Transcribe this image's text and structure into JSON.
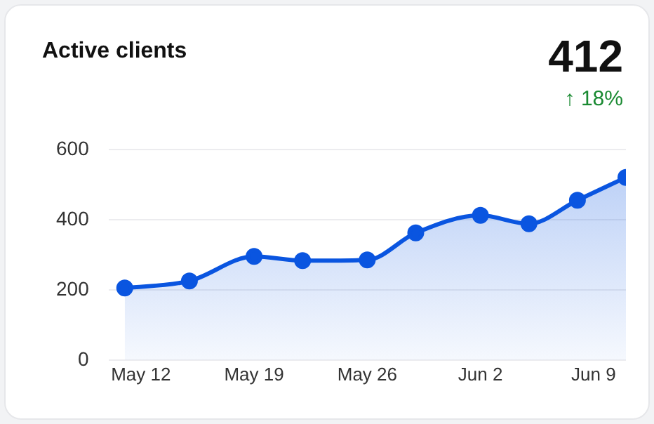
{
  "chart_data": {
    "type": "area",
    "title": "Active clients",
    "annotations": [
      "412",
      "↑ 18%"
    ],
    "x": [
      "--05-11",
      "--05-15",
      "--05-19",
      "--05-22",
      "--05-26",
      "--05-29",
      "--06-02",
      "--06-05",
      "--06-08",
      "--06-11"
    ],
    "series": [
      {
        "color": "#0a55e0",
        "values": [
          205,
          225,
          295,
          283,
          285,
          362,
          412,
          388,
          455,
          520
        ]
      }
    ],
    "xlim": [
      "--05-10",
      "--06-11"
    ],
    "xticks": [
      {
        "value": "--05-12",
        "label": "May 12"
      },
      {
        "value": "--05-19",
        "label": "May 19"
      },
      {
        "value": "--05-26",
        "label": "May 26"
      },
      {
        "value": "--06-02",
        "label": "Jun 2"
      },
      {
        "value": "--06-09",
        "label": "Jun 9"
      }
    ],
    "ylim": [
      0,
      600
    ],
    "yticks": [
      0,
      200,
      400,
      600
    ],
    "grid": "y",
    "legend": false,
    "marker": "circle",
    "line_style": "solid"
  }
}
